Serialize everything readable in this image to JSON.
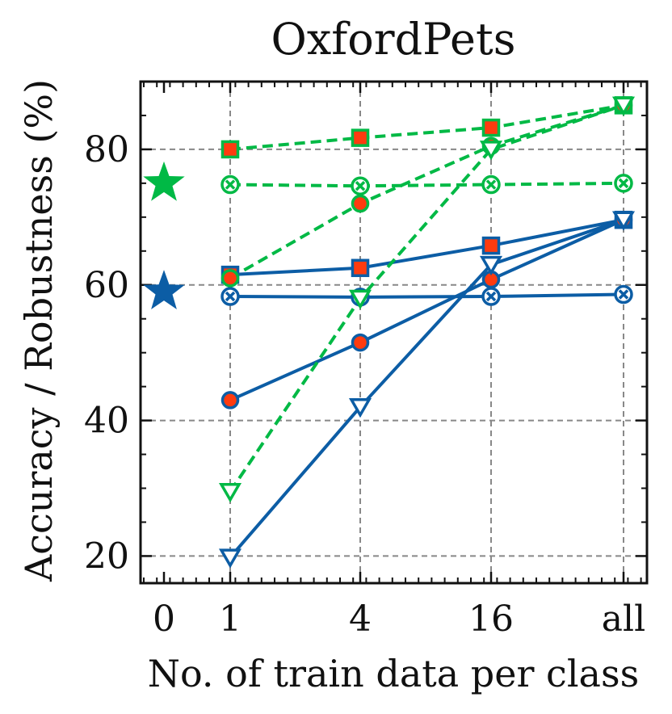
{
  "chart_data": {
    "type": "line",
    "title": "OxfordPets",
    "xlabel": "No. of train data per class",
    "ylabel": "Accuracy / Robustness (%)",
    "x_categories": [
      "0",
      "1",
      "4",
      "16",
      "all"
    ],
    "yticks": [
      20,
      40,
      60,
      80
    ],
    "ylim": [
      16,
      90
    ],
    "grid": true,
    "colors": {
      "green": "#00b945",
      "blue": "#0c5da5",
      "marker_fill": "#ff3b0f"
    },
    "zero_shot": [
      {
        "name": "green-zero-shot",
        "color": "green",
        "x": "0",
        "y": 75
      },
      {
        "name": "blue-zero-shot",
        "color": "blue",
        "x": "0",
        "y": 59
      }
    ],
    "series": [
      {
        "name": "green-square",
        "color": "green",
        "linestyle": "dashed",
        "marker": "square-filled",
        "x": [
          "1",
          "4",
          "16",
          "all"
        ],
        "values": [
          80,
          81.7,
          83.2,
          86.5
        ]
      },
      {
        "name": "green-x",
        "color": "green",
        "linestyle": "dashed",
        "marker": "x-in-circle",
        "x": [
          "1",
          "4",
          "16",
          "all"
        ],
        "values": [
          74.8,
          74.6,
          74.8,
          75
        ]
      },
      {
        "name": "green-circle",
        "color": "green",
        "linestyle": "dashed",
        "marker": "circle-filled",
        "x": [
          "1",
          "4",
          "16",
          "all"
        ],
        "values": [
          61,
          72,
          80.5,
          86.5
        ]
      },
      {
        "name": "green-triangle",
        "color": "green",
        "linestyle": "dashed",
        "marker": "triangle-down-open",
        "x": [
          "1",
          "4",
          "16",
          "all"
        ],
        "values": [
          29.5,
          58,
          80,
          86.5
        ]
      },
      {
        "name": "blue-square",
        "color": "blue",
        "linestyle": "solid",
        "marker": "square-filled",
        "x": [
          "1",
          "4",
          "16",
          "all"
        ],
        "values": [
          61.5,
          62.5,
          65.8,
          69.6
        ]
      },
      {
        "name": "blue-x",
        "color": "blue",
        "linestyle": "solid",
        "marker": "x-in-circle",
        "x": [
          "1",
          "4",
          "16",
          "all"
        ],
        "values": [
          58.3,
          58.2,
          58.3,
          58.6
        ]
      },
      {
        "name": "blue-circle",
        "color": "blue",
        "linestyle": "solid",
        "marker": "circle-filled",
        "x": [
          "1",
          "4",
          "16",
          "all"
        ],
        "values": [
          43,
          51.5,
          60.8,
          69.6
        ]
      },
      {
        "name": "blue-triangle",
        "color": "blue",
        "linestyle": "solid",
        "marker": "triangle-down-open",
        "x": [
          "1",
          "4",
          "16",
          "all"
        ],
        "values": [
          19.8,
          42,
          63,
          69.6
        ]
      }
    ]
  }
}
